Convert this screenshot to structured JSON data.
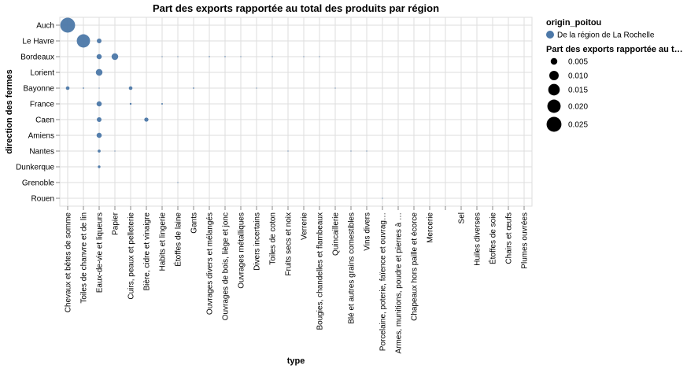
{
  "chart_data": {
    "type": "scatter",
    "title": "Part des exports rapportée au total des produits par région",
    "xlabel": "type",
    "ylabel": "direction des fermes",
    "x_categories": [
      "Chevaux et bêtes de somme",
      "Toiles de chanvre et de lin",
      "Eaux-de-vie et liqueurs",
      "Papier",
      "Cuirs, peaux et pelleterie",
      "Bière, cidre et vinaigre",
      "Habits et lingerie",
      "Étoffes de laine",
      "Gants",
      "Ouvrages divers et mélangés",
      "Ouvrages de bois, liège et jonc",
      "Ouvrages métalliques",
      "Divers incertains",
      "Toiles de coton",
      "Fruits secs et noix",
      "Verrerie",
      "Bougies, chandelles et flambeaux",
      "Quincaillerie",
      "Blé et autres grains comestibles",
      "Vins divers",
      "Porcelaine, poterie, faïence et ouvrag…",
      "Armes, munitions, poudre et pierres à …",
      "Chapeaux hors paille et écorce",
      "Mercerie",
      "",
      "Sel",
      "Huiles diverses",
      "Étoffes de soie",
      "Chairs et œufs",
      "Plumes ouvrées"
    ],
    "y_categories": [
      "Auch",
      "Le Havre",
      "Bordeaux",
      "Lorient",
      "Bayonne",
      "France",
      "Caen",
      "Amiens",
      "Nantes",
      "Dunkerque",
      "Grenoble",
      "Rouen"
    ],
    "legend": {
      "color_title": "origin_poitou",
      "color_entries": [
        {
          "label": "De la région de La Rochelle",
          "color": "#4c78a8"
        }
      ],
      "size_title": "Part des exports rapportée au t…",
      "size_entries": [
        0.005,
        0.01,
        0.015,
        0.02,
        0.025
      ]
    },
    "size_domain": [
      0,
      0.025
    ],
    "points": [
      {
        "x": "Chevaux et bêtes de somme",
        "y": "Auch",
        "value": 0.025
      },
      {
        "x": "Toiles de chanvre et de lin",
        "y": "Le Havre",
        "value": 0.02
      },
      {
        "x": "Eaux-de-vie et liqueurs",
        "y": "Le Havre",
        "value": 0.0025
      },
      {
        "x": "Eaux-de-vie et liqueurs",
        "y": "Bordeaux",
        "value": 0.003
      },
      {
        "x": "Papier",
        "y": "Bordeaux",
        "value": 0.005
      },
      {
        "x": "Habits et lingerie",
        "y": "Bordeaux",
        "value": 0.0001
      },
      {
        "x": "Étoffes de laine",
        "y": "Bordeaux",
        "value": 0.0001
      },
      {
        "x": "Ouvrages divers et mélangés",
        "y": "Bordeaux",
        "value": 0.00015
      },
      {
        "x": "Ouvrages de bois, liège et jonc",
        "y": "Bordeaux",
        "value": 0.00015
      },
      {
        "x": "Ouvrages métalliques",
        "y": "Bordeaux",
        "value": 0.0001
      },
      {
        "x": "Toiles de coton",
        "y": "Bordeaux",
        "value": 0.0001
      },
      {
        "x": "Verrerie",
        "y": "Bordeaux",
        "value": 0.0001
      },
      {
        "x": "Bougies, chandelles et flambeaux",
        "y": "Bordeaux",
        "value": 0.0001
      },
      {
        "x": "Eaux-de-vie et liqueurs",
        "y": "Lorient",
        "value": 0.005
      },
      {
        "x": "Chevaux et bêtes de somme",
        "y": "Bayonne",
        "value": 0.0015
      },
      {
        "x": "Toiles de chanvre et de lin",
        "y": "Bayonne",
        "value": 0.0002
      },
      {
        "x": "Eaux-de-vie et liqueurs",
        "y": "Bayonne",
        "value": 0.0001
      },
      {
        "x": "Cuirs, peaux et pelleterie",
        "y": "Bayonne",
        "value": 0.0015
      },
      {
        "x": "Gants",
        "y": "Bayonne",
        "value": 0.0002
      },
      {
        "x": "Divers incertains",
        "y": "Bayonne",
        "value": 0.0001
      },
      {
        "x": "Quincaillerie",
        "y": "Bayonne",
        "value": 0.0001
      },
      {
        "x": "Eaux-de-vie et liqueurs",
        "y": "France",
        "value": 0.003
      },
      {
        "x": "Cuirs, peaux et pelleterie",
        "y": "France",
        "value": 0.0004
      },
      {
        "x": "Habits et lingerie",
        "y": "France",
        "value": 0.0003
      },
      {
        "x": "Eaux-de-vie et liqueurs",
        "y": "Caen",
        "value": 0.0025
      },
      {
        "x": "Bière, cidre et vinaigre",
        "y": "Caen",
        "value": 0.002
      },
      {
        "x": "Eaux-de-vie et liqueurs",
        "y": "Amiens",
        "value": 0.003
      },
      {
        "x": "Eaux-de-vie et liqueurs",
        "y": "Nantes",
        "value": 0.001
      },
      {
        "x": "Papier",
        "y": "Nantes",
        "value": 0.0001
      },
      {
        "x": "Fruits secs et noix",
        "y": "Nantes",
        "value": 0.0001
      },
      {
        "x": "Blé et autres grains comestibles",
        "y": "Nantes",
        "value": 0.0001
      },
      {
        "x": "Vins divers",
        "y": "Nantes",
        "value": 0.0001
      },
      {
        "x": "Eaux-de-vie et liqueurs",
        "y": "Dunkerque",
        "value": 0.0008
      },
      {
        "x": "Étoffes de laine",
        "y": "Grenoble",
        "value": 0.0001
      },
      {
        "x": "Porcelaine, poterie, faïence et ouvrag…",
        "y": "Rouen",
        "value": 0.0001
      }
    ]
  }
}
